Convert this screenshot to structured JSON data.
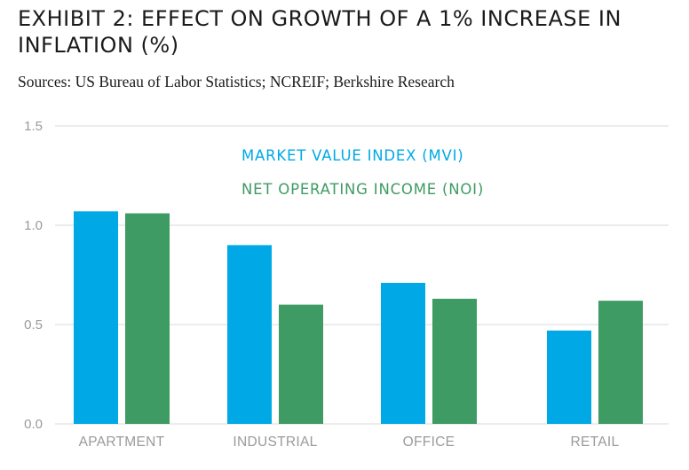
{
  "title": "EXHIBIT 2: EFFECT ON GROWTH OF A 1% INCREASE IN INFLATION (%)",
  "subtitle": "Sources: US Bureau of Labor Statistics; NCREIF; Berkshire Research",
  "chart_data": {
    "type": "bar",
    "categories": [
      "APARTMENT",
      "INDUSTRIAL",
      "OFFICE",
      "RETAIL"
    ],
    "series": [
      {
        "name": "MARKET VALUE INDEX (MVI)",
        "values": [
          1.07,
          0.9,
          0.71,
          0.47
        ],
        "color": "#00a9e6"
      },
      {
        "name": "NET OPERATING INCOME (NOI)",
        "values": [
          1.06,
          0.6,
          0.63,
          0.62
        ],
        "color": "#3e9b63"
      }
    ],
    "yticks": [
      "0.0",
      "0.5",
      "1.0",
      "1.5"
    ],
    "ylim": [
      0,
      1.5
    ],
    "grid": true,
    "legend_position": "top-center"
  }
}
